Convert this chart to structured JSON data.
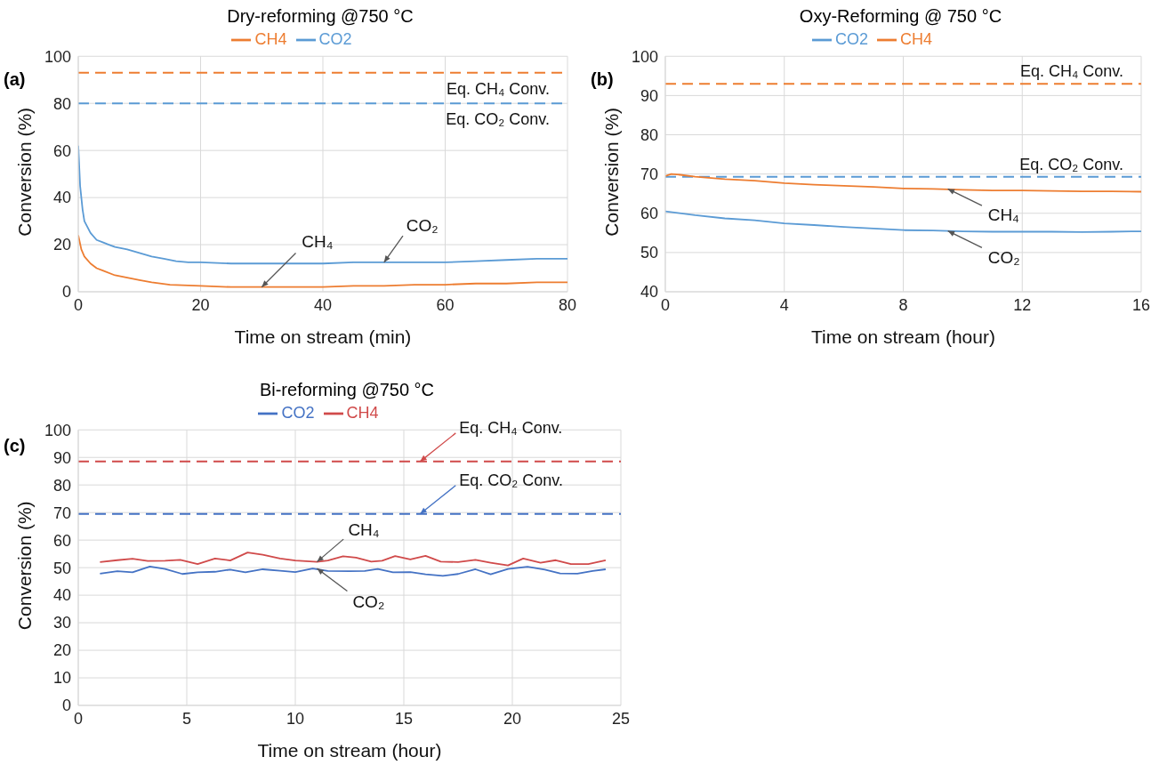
{
  "chart_data": [
    {
      "type": "line",
      "title": "Dry-reforming @750 °C",
      "xlabel": "Time on stream (min)",
      "ylabel": "Conversion (%)",
      "xlim": [
        0,
        80
      ],
      "xticks": [
        0,
        20,
        40,
        60,
        80
      ],
      "ylim": [
        0,
        100
      ],
      "yticks": [
        0,
        20,
        40,
        60,
        80,
        100
      ],
      "grid": true,
      "legend": "top",
      "series": [
        {
          "name": "CH4",
          "color": "#ed7d31",
          "x": [
            0,
            0.5,
            1,
            2,
            3,
            4,
            6,
            8,
            10,
            12,
            15,
            20,
            25,
            30,
            35,
            40,
            45,
            50,
            55,
            60,
            65,
            70,
            75,
            80
          ],
          "values": [
            24,
            18,
            15,
            12,
            10,
            9,
            7,
            6,
            5,
            4,
            3,
            2.5,
            2,
            2,
            2,
            2,
            2.5,
            2.5,
            3,
            3,
            3.5,
            3.5,
            4,
            4
          ]
        },
        {
          "name": "CO2",
          "color": "#5b9bd5",
          "x": [
            0,
            0.3,
            0.7,
            1,
            2,
            3,
            4,
            5,
            6,
            8,
            10,
            12,
            14,
            16,
            18,
            20,
            25,
            30,
            35,
            40,
            45,
            50,
            55,
            60,
            65,
            70,
            75,
            80
          ],
          "values": [
            62,
            45,
            35,
            30,
            25,
            22,
            21,
            20,
            19,
            18,
            16.5,
            15,
            14,
            13,
            12.5,
            12.5,
            12,
            12,
            12,
            12,
            12.5,
            12.5,
            12.5,
            12.5,
            13,
            13.5,
            14,
            14
          ]
        }
      ],
      "ref_lines": [
        {
          "axis": "y",
          "value": 93,
          "label": "Eq. CH₄ Conv.",
          "color": "#ed7d31",
          "line_style": "dashed"
        },
        {
          "axis": "y",
          "value": 80,
          "label": "Eq. CO₂ Conv.",
          "color": "#5b9bd5",
          "line_style": "dashed"
        }
      ],
      "annotations": [
        "(a)",
        {
          "text": "CH₄",
          "x": 30,
          "y": 2
        },
        {
          "text": "CO₂",
          "x": 50,
          "y": 12.5
        }
      ]
    },
    {
      "type": "line",
      "title": "Oxy-Reforming @ 750 °C",
      "xlabel": "Time on stream (hour)",
      "ylabel": "Conversion (%)",
      "xlim": [
        0,
        16
      ],
      "xticks": [
        0,
        4,
        8,
        12,
        16
      ],
      "ylim": [
        40,
        100
      ],
      "yticks": [
        40,
        50,
        60,
        70,
        80,
        90,
        100
      ],
      "grid": true,
      "legend": "top",
      "series": [
        {
          "name": "CO2",
          "color": "#5b9bd5",
          "x": [
            0,
            1,
            2,
            3,
            4,
            5,
            6,
            7,
            8,
            9,
            10,
            11,
            12,
            13,
            14,
            15,
            16
          ],
          "values": [
            60.5,
            59.5,
            58.7,
            58.2,
            57.4,
            57,
            56.5,
            56.1,
            55.7,
            55.6,
            55.4,
            55.3,
            55.3,
            55.3,
            55.2,
            55.3,
            55.4
          ]
        },
        {
          "name": "CH4",
          "color": "#ed7d31",
          "x": [
            0,
            0.2,
            0.5,
            1,
            2,
            3,
            4,
            5,
            6,
            7,
            8,
            9,
            10,
            11,
            12,
            13,
            14,
            15,
            16
          ],
          "values": [
            69.5,
            70,
            69.8,
            69.3,
            68.7,
            68.3,
            67.7,
            67.3,
            67,
            66.7,
            66.3,
            66.2,
            66,
            65.8,
            65.8,
            65.7,
            65.6,
            65.6,
            65.5
          ]
        }
      ],
      "ref_lines": [
        {
          "axis": "y",
          "value": 93,
          "label": "Eq. CH₄ Conv.",
          "color": "#ed7d31",
          "line_style": "dashed"
        },
        {
          "axis": "y",
          "value": 69.3,
          "label": "Eq. CO₂ Conv.",
          "color": "#5b9bd5",
          "line_style": "dashed"
        }
      ],
      "annotations": [
        "(b)",
        {
          "text": "CH₄",
          "x": 9.5,
          "y": 66.2
        },
        {
          "text": "CO₂",
          "x": 9.5,
          "y": 55.5
        }
      ]
    },
    {
      "type": "line",
      "title": "Bi-reforming @750 °C",
      "xlabel": "Time on stream (hour)",
      "ylabel": "Conversion (%)",
      "xlim": [
        0,
        25
      ],
      "xticks": [
        0,
        5,
        10,
        15,
        20,
        25
      ],
      "ylim": [
        0,
        100
      ],
      "yticks": [
        0,
        10,
        20,
        30,
        40,
        50,
        60,
        70,
        80,
        90,
        100
      ],
      "grid": true,
      "legend": "top",
      "series": [
        {
          "name": "CO2",
          "color": "#4472c4",
          "x": [
            1,
            1.8,
            2.5,
            3.3,
            4,
            4.8,
            5.5,
            6.3,
            7,
            7.7,
            8.5,
            9.3,
            10,
            10.8,
            11.5,
            12.5,
            13.2,
            13.8,
            14.5,
            15.3,
            16,
            16.8,
            17.5,
            18.3,
            19,
            19.8,
            20.7,
            21.5,
            22.2,
            23,
            23.7,
            24.3
          ],
          "values": [
            47.8,
            48.7,
            48.3,
            50.4,
            49.5,
            47.7,
            48.3,
            48.5,
            49.3,
            48.3,
            49.4,
            48.9,
            48.4,
            49.7,
            48.8,
            48.7,
            48.8,
            49.5,
            48.3,
            48.4,
            47.6,
            47,
            47.7,
            49.4,
            47.6,
            49.5,
            50.3,
            49.3,
            47.9,
            47.8,
            48.8,
            49.4
          ]
        },
        {
          "name": "CH4",
          "color": "#d04a4a",
          "x": [
            1,
            1.8,
            2.5,
            3.2,
            4,
            4.7,
            5.5,
            6.3,
            7,
            7.8,
            8.5,
            9.3,
            10,
            11,
            11.5,
            12.2,
            12.8,
            13.5,
            14,
            14.6,
            15.3,
            16,
            16.7,
            17.5,
            18.3,
            19,
            19.8,
            20.5,
            21.3,
            22,
            22.7,
            23.5,
            24.3
          ],
          "values": [
            52,
            52.7,
            53.2,
            52.4,
            52.5,
            52.8,
            51.3,
            53.3,
            52.6,
            55.5,
            54.7,
            53.3,
            52.6,
            52.1,
            52.6,
            54.1,
            53.6,
            52.2,
            52.5,
            54.2,
            53,
            54.3,
            52.2,
            52,
            52.8,
            51.8,
            50.8,
            53.3,
            51.8,
            52.7,
            51.3,
            51.3,
            52.7
          ]
        }
      ],
      "ref_lines": [
        {
          "axis": "y",
          "value": 88.5,
          "label": "Eq. CH₄ Conv.",
          "color": "#d04a4a",
          "line_style": "dashed"
        },
        {
          "axis": "y",
          "value": 69.5,
          "label": "Eq. CO₂ Conv.",
          "color": "#4472c4",
          "line_style": "dashed"
        }
      ],
      "annotations": [
        "(c)",
        {
          "text": "CH₄",
          "x": 11,
          "y": 52.1
        },
        {
          "text": "CO₂",
          "x": 11,
          "y": 49.7
        }
      ]
    }
  ]
}
